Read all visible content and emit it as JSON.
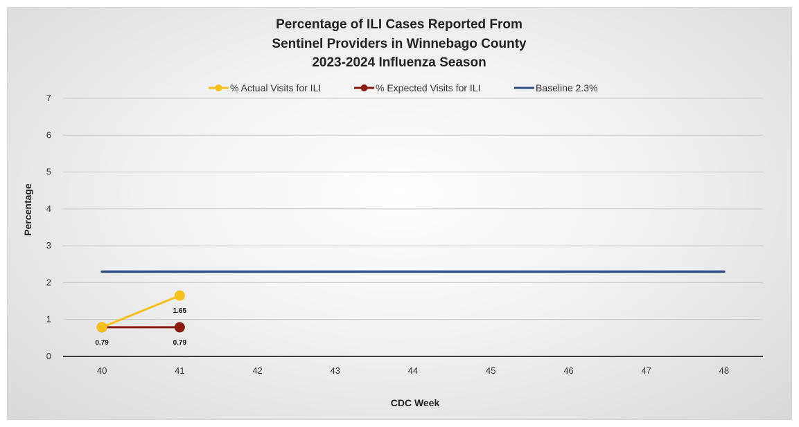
{
  "chart_data": {
    "type": "line",
    "title": [
      "Percentage of ILI Cases Reported From",
      "Sentinel Providers in Winnebago County",
      "2023-2024 Influenza Season"
    ],
    "xlabel": "CDC Week",
    "ylabel": "Percentage",
    "categories": [
      "40",
      "41",
      "42",
      "43",
      "44",
      "45",
      "46",
      "47",
      "48"
    ],
    "ylim": [
      0,
      7
    ],
    "yticks": [
      0,
      1,
      2,
      3,
      4,
      5,
      6,
      7
    ],
    "grid": true,
    "legend_position": "top",
    "series": [
      {
        "name": "% Actual Visits for ILI",
        "color": "#f5c01a",
        "values": [
          0.79,
          1.65,
          null,
          null,
          null,
          null,
          null,
          null,
          null
        ],
        "labels": [
          null,
          "1.65",
          null,
          null,
          null,
          null,
          null,
          null,
          null
        ],
        "markers": true
      },
      {
        "name": "% Expected Visits for ILI",
        "color": "#8b1a10",
        "values": [
          0.79,
          0.79,
          null,
          null,
          null,
          null,
          null,
          null,
          null
        ],
        "labels": [
          "0.79",
          "0.79",
          null,
          null,
          null,
          null,
          null,
          null,
          null
        ],
        "markers": true
      },
      {
        "name": "Baseline 2.3%",
        "color": "#2f4f86",
        "values": [
          2.3,
          2.3,
          2.3,
          2.3,
          2.3,
          2.3,
          2.3,
          2.3,
          2.3
        ],
        "labels": [
          null,
          null,
          null,
          null,
          null,
          null,
          null,
          null,
          null
        ],
        "markers": false
      }
    ]
  }
}
